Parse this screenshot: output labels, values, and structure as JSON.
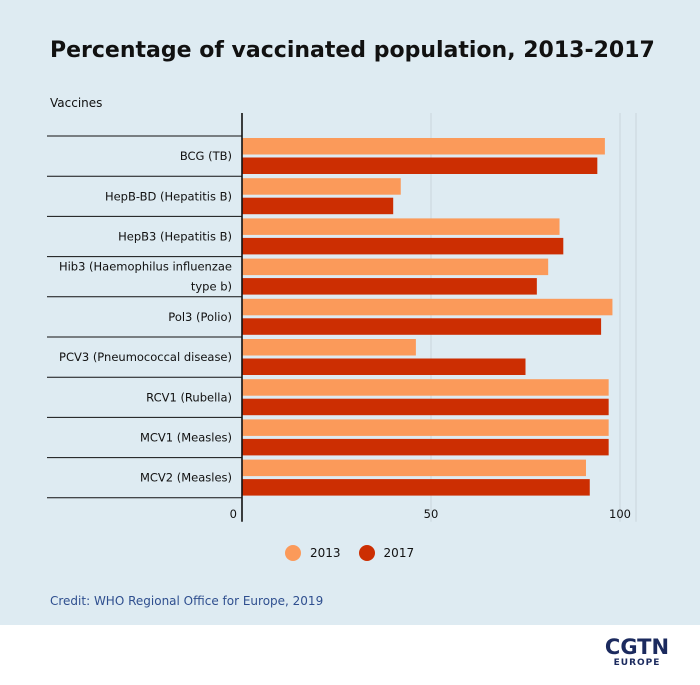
{
  "title": "Percentage of vaccinated population, 2013-2017",
  "credit": "Credit: WHO Regional Office for Europe, 2019",
  "logo": {
    "main": "CGTN",
    "sub": "EUROPE"
  },
  "colors": {
    "background": "#deebf2",
    "series_2013": "#fb9a5a",
    "series_2017": "#cc2e02"
  },
  "chart_data": {
    "type": "bar",
    "orientation": "horizontal",
    "title": "Percentage of vaccinated population, 2013-2017",
    "ylabel": "Vaccines",
    "xlabel": "",
    "categories": [
      "BCG (TB)",
      "HepB-BD (Hepatitis B)",
      "HepB3 (Hepatitis B)",
      "Hib3 (Haemophilus influenzae type b)",
      "Pol3 (Polio)",
      "PCV3 (Pneumococcal disease)",
      "RCV1 (Rubella)",
      "MCV1 (Measles)",
      "MCV2 (Measles)"
    ],
    "category_lines": [
      [
        "BCG (TB)"
      ],
      [
        "HepB-BD (Hepatitis B)"
      ],
      [
        "HepB3 (Hepatitis B)"
      ],
      [
        "Hib3 (Haemophilus influenzae",
        "type b)"
      ],
      [
        "Pol3 (Polio)"
      ],
      [
        "PCV3 (Pneumococcal disease)"
      ],
      [
        "RCV1 (Rubella)"
      ],
      [
        "MCV1 (Measles)"
      ],
      [
        "MCV2 (Measles)"
      ]
    ],
    "series": [
      {
        "name": "2013",
        "color": "#fb9a5a",
        "values": [
          96,
          42,
          84,
          81,
          98,
          46,
          97,
          97,
          91
        ]
      },
      {
        "name": "2017",
        "color": "#cc2e02",
        "values": [
          94,
          40,
          85,
          78,
          95,
          75,
          97,
          97,
          92
        ]
      }
    ],
    "xlim": [
      0,
      100
    ],
    "xticks": [
      0,
      50,
      100
    ],
    "grid": true,
    "legend": "bottom"
  }
}
